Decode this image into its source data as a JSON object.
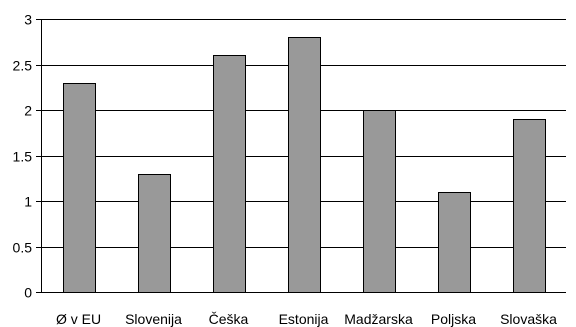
{
  "chart_data": {
    "type": "bar",
    "title": "",
    "xlabel": "",
    "ylabel": "",
    "categories": [
      "Ø v EU",
      "Slovenija",
      "Češka",
      "Estonija",
      "Madžarska",
      "Poljska",
      "Slovaška"
    ],
    "values": [
      2.3,
      1.3,
      2.6,
      2.8,
      2.0,
      1.1,
      1.9
    ],
    "ylim": [
      0,
      3
    ],
    "yticks": [
      "0",
      "0.5",
      "1",
      "1.5",
      "2",
      "2.5",
      "3"
    ],
    "grid": true,
    "legend": "none",
    "bar_color": "#999999",
    "bar_stroke": "#000000",
    "grid_color": "#000000"
  }
}
